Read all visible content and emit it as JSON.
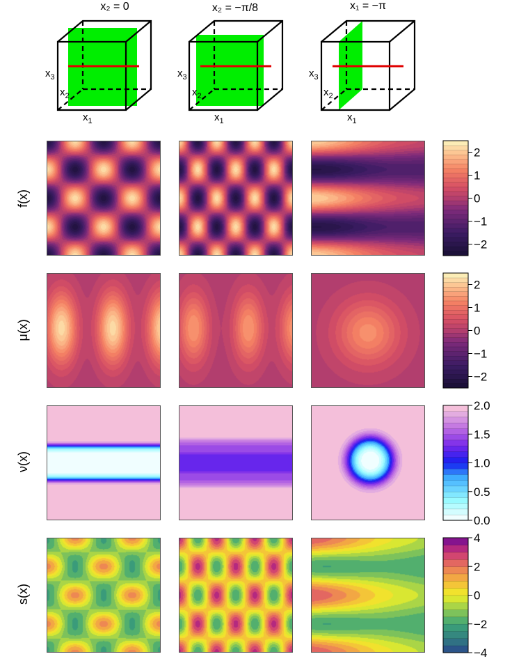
{
  "chart_data": {
    "type": "heatmap",
    "columns": [
      {
        "title": "x₂ = 0",
        "slice_axis": "x₂",
        "slice_value": 0,
        "plane": "x1-x3"
      },
      {
        "title": "x₂ = −π/8",
        "slice_axis": "x₂",
        "slice_value": -0.3927,
        "plane": "x1-x3"
      },
      {
        "title": "x₁ = −π",
        "slice_axis": "x₁",
        "slice_value": -3.1416,
        "plane": "x2-x3"
      }
    ],
    "axis_labels": {
      "x1": "x₁",
      "x2": "x₂",
      "x3": "x₃"
    },
    "rows": [
      {
        "key": "f",
        "label": "f(x)",
        "palette": "magma",
        "range": [
          -2.5,
          2.5
        ],
        "levels": 25,
        "ticks": [
          2,
          1,
          0,
          -1,
          -2
        ],
        "tick_labels": [
          "2",
          "1",
          "0",
          "−1",
          "−2"
        ]
      },
      {
        "key": "mu",
        "label": "μ(x)",
        "palette": "magma",
        "range": [
          -2.5,
          2.5
        ],
        "levels": 25,
        "ticks": [
          2,
          1,
          0,
          -1,
          -2
        ],
        "tick_labels": [
          "2",
          "1",
          "0",
          "−1",
          "−2"
        ]
      },
      {
        "key": "nu",
        "label": "ν(x)",
        "palette": "cool",
        "range": [
          0,
          2
        ],
        "levels": 20,
        "ticks": [
          2.0,
          1.5,
          1.0,
          0.5,
          0.0
        ],
        "tick_labels": [
          "2.0",
          "1.5",
          "1.0",
          "0.5",
          "0.0"
        ]
      },
      {
        "key": "s",
        "label": "s(x)",
        "palette": "spectral",
        "range": [
          -4,
          4
        ],
        "levels": 16,
        "ticks": [
          4,
          2,
          0,
          -2,
          -4
        ],
        "tick_labels": [
          "4",
          "2",
          "0",
          "−2",
          "−4"
        ]
      }
    ]
  },
  "colors": {
    "slice_plane": "#00ee00",
    "slice_line": "#e00000",
    "cube_edge": "#000000",
    "panel_border": "#555555"
  }
}
